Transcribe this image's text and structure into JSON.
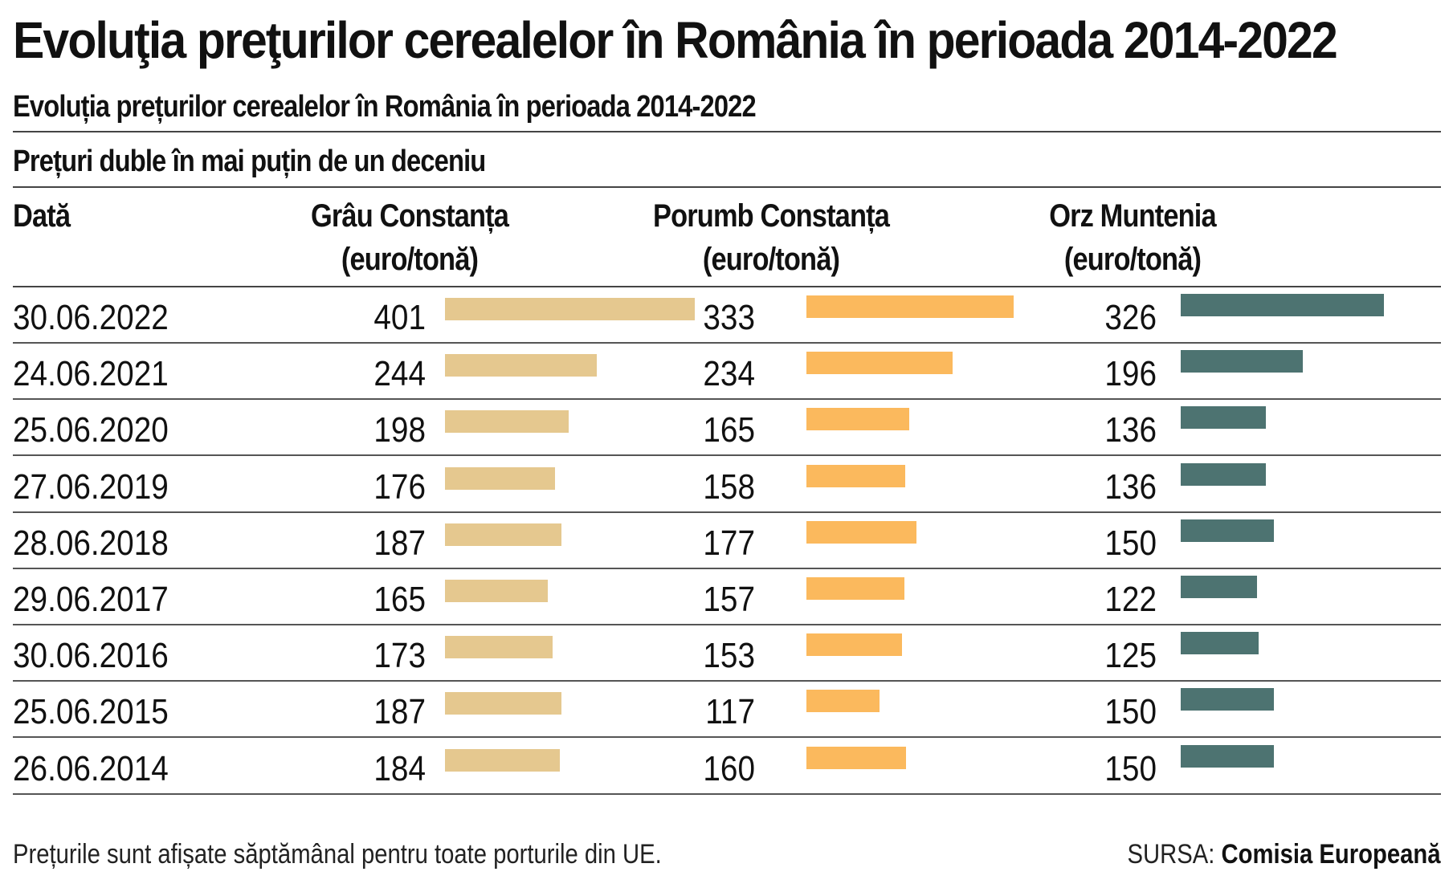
{
  "title": "Evoluţia preţurilor cerealelor în România în perioada 2014-2022",
  "subtitle": "Evoluția prețurilor cerealelor în România în perioada 2014-2022",
  "heading": "Prețuri duble în mai puțin de un deceniu",
  "columns": {
    "date": "Dată",
    "wheat_line1": "Grâu Constanța",
    "wheat_line2": "(euro/tonă)",
    "corn_line1": "Porumb Constanța",
    "corn_line2": "(euro/tonă)",
    "barley_line1": "Orz Muntenia",
    "barley_line2": "(euro/tonă)"
  },
  "colors": {
    "wheat": "#e5c88f",
    "corn": "#fbb95d",
    "barley": "#4d7371"
  },
  "footnote": "Prețurile sunt afișate săptămânal pentru toate porturile din UE.",
  "source_label": "SURSA:",
  "source_name": "Comisia Europeană",
  "chart_data": {
    "type": "bar",
    "categories": [
      "30.06.2022",
      "24.06.2021",
      "25.06.2020",
      "27.06.2019",
      "28.06.2018",
      "29.06.2017",
      "30.06.2016",
      "25.06.2015",
      "26.06.2014"
    ],
    "series": [
      {
        "name": "Grâu Constanța (euro/tonă)",
        "values": [
          401,
          244,
          198,
          176,
          187,
          165,
          173,
          187,
          184
        ]
      },
      {
        "name": "Porumb Constanța (euro/tonă)",
        "values": [
          333,
          234,
          165,
          158,
          177,
          157,
          153,
          117,
          160
        ]
      },
      {
        "name": "Orz Muntenia (euro/tonă)",
        "values": [
          326,
          196,
          136,
          136,
          150,
          122,
          125,
          150,
          150
        ]
      }
    ],
    "title": "Evoluţia preţurilor cerealelor în România în perioada 2014-2022",
    "xlabel": "Dată",
    "ylabel": "euro/tonă"
  }
}
